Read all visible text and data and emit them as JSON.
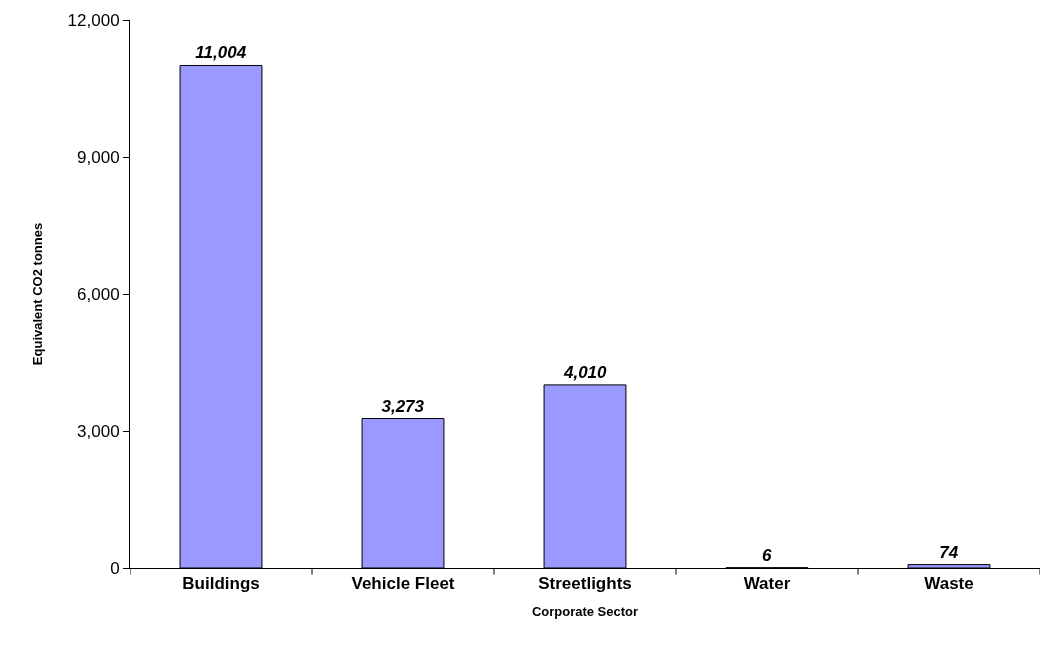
{
  "chart_data": {
    "type": "bar",
    "xlabel": "Corporate Sector",
    "ylabel": "Equivalent CO2 tonnes",
    "categories": [
      "Buildings",
      "Vehicle Fleet",
      "Streetlights",
      "Water",
      "Waste"
    ],
    "values": [
      11004,
      3273,
      4010,
      6,
      74
    ],
    "color": "#9999ff",
    "ylim": [
      0,
      12000
    ],
    "yticks": [
      {
        "value": 0,
        "label": "0"
      },
      {
        "value": 3000,
        "label": "3,000"
      },
      {
        "value": 6000,
        "label": "6,000"
      },
      {
        "value": 9000,
        "label": "9,000"
      },
      {
        "value": 12000,
        "label": "12,000"
      }
    ],
    "value_labels": [
      "11,004",
      "3,273",
      "4,010",
      "6",
      "74"
    ]
  }
}
